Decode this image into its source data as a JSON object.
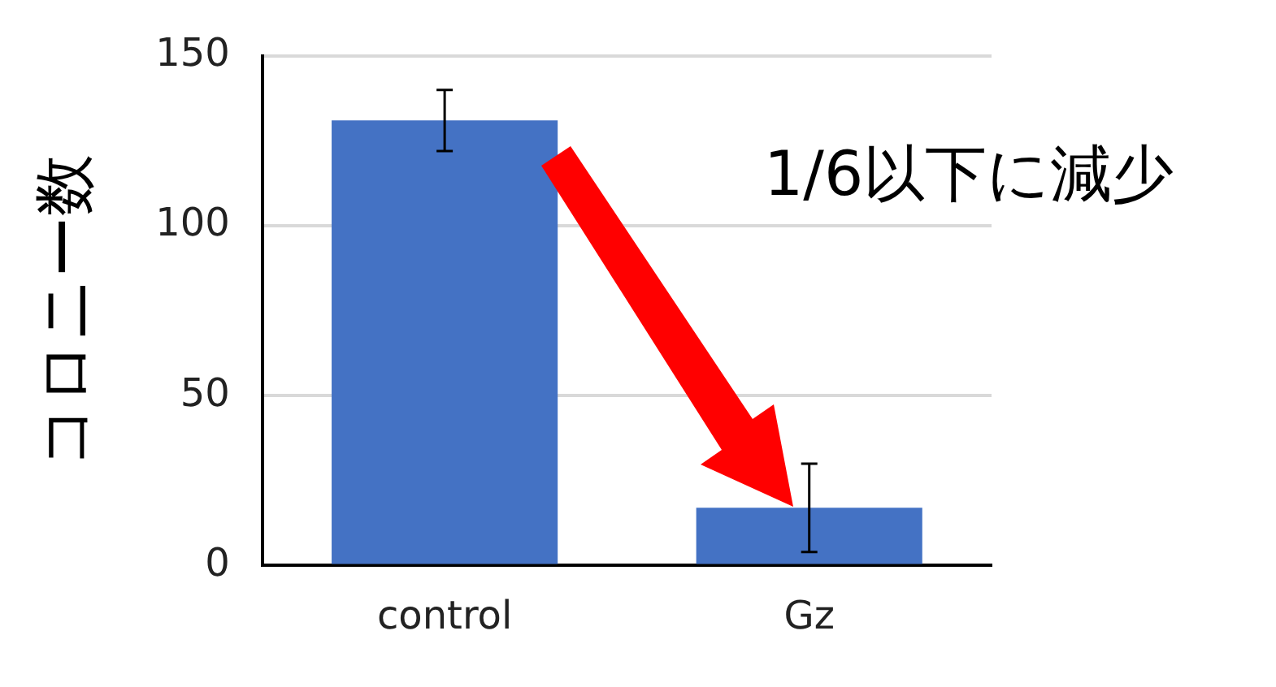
{
  "chart_data": {
    "type": "bar",
    "ylabel": "コロニー数",
    "categories": [
      "control",
      "Gz"
    ],
    "values": [
      131,
      17
    ],
    "errors": [
      9,
      13
    ],
    "color": "#4472c4",
    "ylim": [
      0,
      150
    ],
    "yticks": [
      0,
      50,
      100,
      150
    ],
    "grid": "y",
    "legend": false,
    "annotations": [
      "1/6以下に減少"
    ]
  }
}
